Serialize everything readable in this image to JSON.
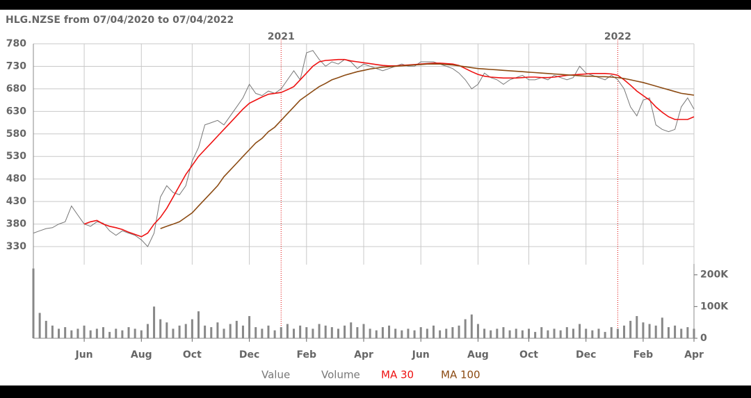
{
  "chart_data": {
    "type": "line",
    "title": "HLG.NZSE from 07/04/2020 to 07/04/2022",
    "categories": [
      null,
      null,
      null,
      null,
      null,
      null,
      null,
      null,
      "Jun",
      null,
      null,
      null,
      null,
      null,
      null,
      null,
      null,
      "Aug",
      null,
      null,
      null,
      null,
      null,
      null,
      null,
      "Oct",
      null,
      null,
      null,
      null,
      null,
      null,
      null,
      null,
      "Dec",
      null,
      null,
      null,
      null,
      null,
      null,
      null,
      null,
      "Feb",
      null,
      null,
      null,
      null,
      null,
      null,
      null,
      null,
      "Apr",
      null,
      null,
      null,
      null,
      null,
      null,
      null,
      null,
      "Jun",
      null,
      null,
      null,
      null,
      null,
      null,
      null,
      null,
      "Aug",
      null,
      null,
      null,
      null,
      null,
      null,
      null,
      "Oct",
      null,
      null,
      null,
      null,
      null,
      null,
      null,
      null,
      "Dec",
      null,
      null,
      null,
      null,
      null,
      null,
      null,
      null,
      "Feb",
      null,
      null,
      null,
      null,
      null,
      null,
      null,
      "Apr"
    ],
    "year_labels": [
      null,
      null,
      null,
      null,
      null,
      null,
      null,
      null,
      null,
      null,
      null,
      null,
      null,
      null,
      null,
      null,
      null,
      null,
      null,
      null,
      null,
      null,
      null,
      null,
      null,
      null,
      null,
      null,
      null,
      null,
      null,
      null,
      null,
      null,
      null,
      null,
      null,
      null,
      null,
      "2021",
      null,
      null,
      null,
      null,
      null,
      null,
      null,
      null,
      null,
      null,
      null,
      null,
      null,
      null,
      null,
      null,
      null,
      null,
      null,
      null,
      null,
      null,
      null,
      null,
      null,
      null,
      null,
      null,
      null,
      null,
      null,
      null,
      null,
      null,
      null,
      null,
      null,
      null,
      null,
      null,
      null,
      null,
      null,
      null,
      null,
      null,
      null,
      null,
      null,
      null,
      null,
      null,
      "2022",
      null,
      null,
      null,
      null,
      null,
      null,
      null,
      null,
      null,
      null,
      null,
      null
    ],
    "year_line_color": "#dd0000",
    "series": [
      {
        "name": "Value",
        "color": "#777777",
        "values": [
          360,
          365,
          370,
          372,
          380,
          385,
          420,
          400,
          380,
          375,
          385,
          382,
          365,
          355,
          365,
          360,
          355,
          345,
          330,
          360,
          440,
          465,
          450,
          445,
          465,
          520,
          550,
          600,
          605,
          610,
          600,
          620,
          640,
          660,
          690,
          670,
          665,
          675,
          670,
          680,
          700,
          720,
          700,
          760,
          765,
          745,
          730,
          740,
          735,
          745,
          740,
          725,
          735,
          730,
          725,
          720,
          725,
          730,
          735,
          730,
          730,
          740,
          740,
          740,
          735,
          730,
          725,
          715,
          700,
          680,
          690,
          715,
          705,
          700,
          690,
          700,
          705,
          710,
          700,
          700,
          705,
          700,
          710,
          705,
          700,
          705,
          730,
          715,
          710,
          705,
          700,
          710,
          700,
          680,
          640,
          620,
          655,
          660,
          600,
          590,
          585,
          590,
          640,
          660,
          635
        ]
      },
      {
        "name": "Volume",
        "color": "#888888",
        "axis": "y2",
        "type": "bar",
        "values": [
          220000,
          80000,
          55000,
          40000,
          30000,
          35000,
          25000,
          30000,
          40000,
          25000,
          30000,
          35000,
          20000,
          30000,
          25000,
          35000,
          30000,
          25000,
          45000,
          100000,
          60000,
          50000,
          30000,
          40000,
          45000,
          60000,
          85000,
          40000,
          35000,
          50000,
          30000,
          45000,
          55000,
          40000,
          70000,
          35000,
          30000,
          40000,
          25000,
          35000,
          45000,
          30000,
          40000,
          35000,
          30000,
          45000,
          40000,
          35000,
          30000,
          40000,
          50000,
          35000,
          45000,
          30000,
          25000,
          35000,
          40000,
          30000,
          25000,
          30000,
          25000,
          35000,
          30000,
          40000,
          25000,
          30000,
          35000,
          40000,
          60000,
          75000,
          45000,
          30000,
          25000,
          30000,
          35000,
          25000,
          30000,
          25000,
          30000,
          20000,
          35000,
          25000,
          30000,
          25000,
          35000,
          30000,
          45000,
          30000,
          25000,
          30000,
          20000,
          35000,
          30000,
          40000,
          55000,
          70000,
          50000,
          45000,
          40000,
          65000,
          35000,
          40000,
          30000,
          35000,
          30000
        ]
      },
      {
        "name": "MA 30",
        "color": "#ee1111",
        "values": [
          null,
          null,
          null,
          null,
          null,
          null,
          null,
          null,
          380,
          385,
          388,
          380,
          375,
          372,
          368,
          362,
          357,
          352,
          360,
          380,
          395,
          415,
          440,
          465,
          490,
          510,
          530,
          545,
          560,
          575,
          590,
          605,
          620,
          635,
          648,
          655,
          662,
          668,
          670,
          672,
          678,
          685,
          700,
          715,
          730,
          740,
          743,
          744,
          745,
          745,
          742,
          740,
          738,
          736,
          734,
          732,
          731,
          731,
          732,
          733,
          734,
          735,
          736,
          737,
          737,
          736,
          735,
          732,
          725,
          718,
          712,
          708,
          706,
          705,
          704,
          704,
          704,
          705,
          706,
          706,
          705,
          705,
          706,
          708,
          710,
          711,
          712,
          713,
          714,
          714,
          714,
          713,
          710,
          700,
          688,
          675,
          665,
          655,
          640,
          628,
          618,
          612,
          612,
          612,
          618
        ]
      },
      {
        "name": "MA 100",
        "color": "#8b4a12",
        "values": [
          null,
          null,
          null,
          null,
          null,
          null,
          null,
          null,
          null,
          null,
          null,
          null,
          null,
          null,
          null,
          null,
          null,
          null,
          null,
          null,
          370,
          375,
          380,
          385,
          395,
          405,
          420,
          435,
          450,
          465,
          485,
          500,
          515,
          530,
          545,
          560,
          570,
          585,
          595,
          610,
          625,
          640,
          655,
          665,
          675,
          685,
          692,
          700,
          705,
          710,
          714,
          718,
          721,
          724,
          726,
          728,
          729,
          730,
          731,
          732,
          733,
          734,
          735,
          735,
          735,
          734,
          733,
          731,
          729,
          727,
          725,
          724,
          723,
          722,
          721,
          720,
          719,
          718,
          717,
          716,
          715,
          714,
          713,
          712,
          711,
          710,
          709,
          708,
          708,
          707,
          707,
          706,
          705,
          703,
          700,
          697,
          694,
          690,
          686,
          682,
          678,
          674,
          670,
          668,
          666
        ]
      }
    ],
    "ylim": [
      290,
      780
    ],
    "yticks": [
      780,
      730,
      680,
      630,
      580,
      530,
      480,
      430,
      380,
      330
    ],
    "y2lim": [
      0,
      230000
    ],
    "y2ticks": [
      {
        "value": 200000,
        "label": "200K"
      },
      {
        "value": 100000,
        "label": "100K"
      },
      0
    ],
    "grid": true
  }
}
